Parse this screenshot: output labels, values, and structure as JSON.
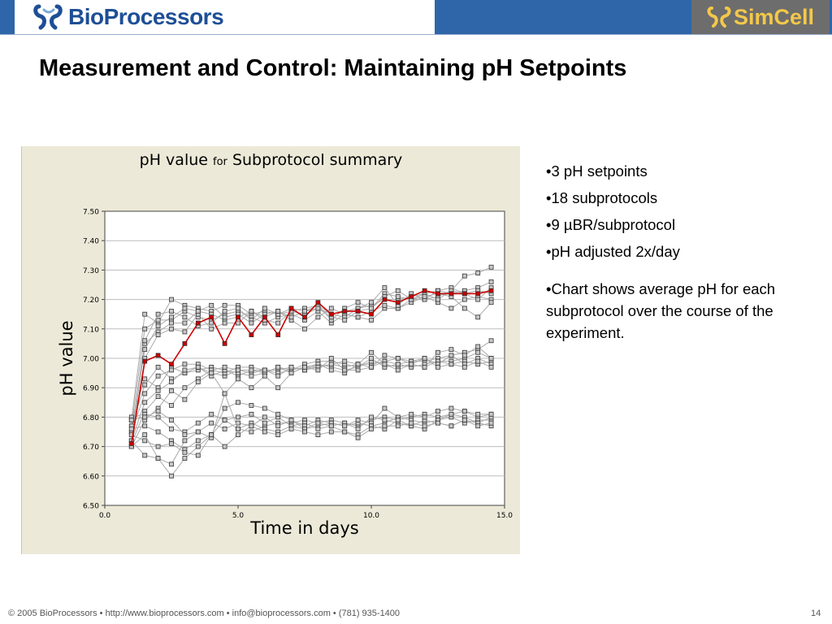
{
  "header": {
    "left_logo_text": "BioProcessors",
    "right_logo_text": "SimCell",
    "brand_color": "#2e66a9"
  },
  "slide": {
    "title": "Measurement and Control:  Maintaining pH Setpoints"
  },
  "bullets": {
    "items": [
      "•3 pH setpoints",
      "•18 subprotocols",
      "•9 µBR/subprotocol",
      "•pH adjusted 2x/day"
    ],
    "note": "•Chart shows average pH for each subprotocol over the course of the experiment."
  },
  "footer": {
    "text": "© 2005 BioProcessors • http://www.bioprocessors.com • info@bioprocessors.com • (781) 935-1400",
    "page_number": "14"
  },
  "chart_data": {
    "type": "line",
    "title_main": "pH value",
    "title_for": "for",
    "title_rest": "Subprotocol summary",
    "xlabel": "Time in days",
    "ylabel": "pH value",
    "xlim": [
      0,
      15
    ],
    "ylim": [
      6.5,
      7.5
    ],
    "x_ticks": [
      "0.0",
      "5.0",
      "10.0",
      "15.0"
    ],
    "x_tick_values": [
      0,
      5,
      10,
      15
    ],
    "y_ticks": [
      "6.50",
      "6.60",
      "6.70",
      "6.80",
      "6.90",
      "7.00",
      "7.10",
      "7.20",
      "7.30",
      "7.40",
      "7.50"
    ],
    "y_tick_values": [
      6.5,
      6.6,
      6.7,
      6.8,
      6.9,
      7.0,
      7.1,
      7.2,
      7.3,
      7.4,
      7.5
    ],
    "highlight_color": "#cc0000",
    "series_color": "#aaaaaa",
    "x": [
      1.0,
      1.5,
      2.0,
      2.5,
      3.0,
      3.5,
      4.0,
      4.5,
      5.0,
      5.5,
      6.0,
      6.5,
      7.0,
      7.5,
      8.0,
      8.5,
      9.0,
      9.5,
      10.0,
      10.5,
      11.0,
      11.5,
      12.0,
      12.5,
      13.0,
      13.5,
      14.0,
      14.5
    ],
    "highlight": {
      "name": "average",
      "values": [
        6.71,
        6.99,
        7.01,
        6.98,
        7.05,
        7.12,
        7.14,
        7.05,
        7.14,
        7.08,
        7.14,
        7.08,
        7.17,
        7.14,
        7.19,
        7.15,
        7.16,
        7.16,
        7.15,
        7.2,
        7.19,
        7.21,
        7.23,
        7.22,
        7.22,
        7.22,
        7.22,
        7.23
      ]
    },
    "series": [
      {
        "values": [
          6.79,
          7.15,
          7.12,
          7.2,
          7.18,
          7.17,
          7.16,
          7.18,
          7.18,
          7.15,
          7.16,
          7.15,
          7.16,
          7.15,
          7.17,
          7.15,
          7.16,
          7.17,
          7.18,
          7.2,
          7.2,
          7.21,
          7.22,
          7.23,
          7.22,
          7.23,
          7.24,
          7.26
        ]
      },
      {
        "values": [
          6.77,
          7.1,
          7.13,
          7.13,
          7.16,
          7.14,
          7.13,
          7.15,
          7.16,
          7.14,
          7.12,
          7.14,
          7.15,
          7.13,
          7.16,
          7.12,
          7.15,
          7.14,
          7.13,
          7.17,
          7.17,
          7.2,
          7.2,
          7.21,
          7.23,
          7.22,
          7.23,
          7.22
        ]
      },
      {
        "values": [
          6.72,
          7.05,
          7.09,
          7.12,
          7.12,
          7.16,
          7.15,
          7.13,
          7.14,
          7.16,
          7.14,
          7.16,
          7.13,
          7.1,
          7.14,
          7.17,
          7.15,
          7.14,
          7.16,
          7.18,
          7.17,
          7.19,
          7.21,
          7.19,
          7.17,
          7.2,
          7.21,
          7.2
        ]
      },
      {
        "values": [
          6.74,
          7.06,
          7.15,
          7.16,
          7.14,
          7.11,
          7.12,
          7.16,
          7.17,
          7.13,
          7.17,
          7.15,
          7.17,
          7.16,
          7.18,
          7.15,
          7.14,
          7.17,
          7.19,
          7.24,
          7.18,
          7.22,
          7.2,
          7.23,
          7.24,
          7.22,
          7.2,
          7.24
        ]
      },
      {
        "values": [
          6.7,
          7.0,
          7.08,
          7.1,
          7.09,
          7.15,
          7.1,
          7.12,
          7.12,
          7.16,
          7.13,
          7.12,
          7.16,
          7.17,
          7.18,
          7.13,
          7.17,
          7.19,
          7.17,
          7.22,
          7.21,
          7.2,
          7.22,
          7.2,
          7.23,
          7.28,
          7.29,
          7.31
        ]
      },
      {
        "values": [
          6.75,
          7.03,
          7.11,
          7.14,
          7.17,
          7.16,
          7.18,
          7.14,
          7.15,
          7.12,
          7.15,
          7.16,
          7.14,
          7.16,
          7.17,
          7.14,
          7.13,
          7.16,
          7.17,
          7.21,
          7.23,
          7.2,
          7.21,
          7.22,
          7.21,
          7.17,
          7.14,
          7.19
        ]
      },
      {
        "values": [
          6.79,
          6.93,
          6.9,
          6.97,
          6.95,
          6.96,
          6.97,
          6.96,
          6.94,
          6.96,
          6.95,
          6.97,
          6.96,
          6.97,
          6.97,
          6.98,
          6.97,
          6.98,
          6.98,
          6.99,
          6.98,
          6.99,
          6.99,
          7.0,
          7.01,
          7.02,
          7.03,
          7.06
        ]
      },
      {
        "values": [
          6.77,
          6.91,
          6.97,
          6.93,
          6.95,
          6.97,
          6.95,
          6.94,
          6.96,
          6.95,
          6.96,
          6.96,
          6.97,
          6.96,
          6.98,
          6.97,
          6.96,
          6.97,
          6.99,
          6.98,
          6.97,
          6.98,
          6.97,
          6.99,
          6.99,
          7.0,
          7.02,
          7.0
        ]
      },
      {
        "values": [
          6.75,
          6.88,
          6.94,
          6.96,
          6.98,
          6.98,
          6.96,
          6.95,
          6.97,
          6.97,
          6.96,
          6.95,
          6.96,
          6.98,
          6.99,
          6.99,
          6.98,
          6.97,
          7.0,
          6.97,
          6.98,
          6.97,
          6.98,
          6.99,
          6.98,
          6.99,
          6.98,
          6.99
        ]
      },
      {
        "values": [
          6.72,
          6.85,
          6.89,
          6.92,
          6.96,
          6.97,
          6.94,
          6.96,
          6.95,
          6.94,
          6.95,
          6.97,
          6.95,
          6.97,
          6.98,
          6.96,
          6.95,
          6.98,
          6.97,
          6.99,
          7.0,
          6.99,
          7.0,
          6.98,
          7.01,
          6.98,
          7.0,
          6.98
        ]
      },
      {
        "values": [
          6.71,
          6.82,
          6.87,
          6.84,
          6.9,
          6.93,
          6.96,
          6.97,
          6.96,
          6.96,
          6.96,
          6.94,
          6.97,
          6.96,
          6.97,
          6.98,
          6.99,
          6.98,
          7.02,
          6.98,
          6.96,
          6.98,
          7.0,
          6.97,
          6.98,
          6.97,
          6.99,
          6.97
        ]
      },
      {
        "values": [
          6.7,
          6.79,
          6.83,
          6.89,
          6.86,
          6.92,
          6.95,
          6.88,
          6.93,
          6.9,
          6.94,
          6.9,
          6.95,
          6.97,
          6.96,
          7.0,
          6.96,
          6.96,
          6.97,
          7.01,
          7.0,
          6.98,
          6.97,
          7.02,
          7.03,
          7.01,
          7.04,
          7.0
        ]
      },
      {
        "values": [
          6.8,
          6.81,
          6.8,
          6.76,
          6.75,
          6.78,
          6.81,
          6.79,
          6.76,
          6.75,
          6.77,
          6.78,
          6.78,
          6.79,
          6.78,
          6.79,
          6.78,
          6.77,
          6.79,
          6.8,
          6.79,
          6.8,
          6.81,
          6.8,
          6.81,
          6.82,
          6.8,
          6.81
        ]
      },
      {
        "values": [
          6.79,
          6.8,
          6.82,
          6.79,
          6.74,
          6.75,
          6.78,
          6.76,
          6.78,
          6.77,
          6.8,
          6.77,
          6.79,
          6.76,
          6.77,
          6.78,
          6.77,
          6.78,
          6.77,
          6.78,
          6.8,
          6.79,
          6.78,
          6.79,
          6.8,
          6.78,
          6.79,
          6.79
        ]
      },
      {
        "values": [
          6.76,
          6.77,
          6.75,
          6.72,
          6.69,
          6.72,
          6.74,
          6.79,
          6.8,
          6.81,
          6.78,
          6.8,
          6.77,
          6.78,
          6.76,
          6.77,
          6.78,
          6.76,
          6.8,
          6.79,
          6.78,
          6.77,
          6.79,
          6.78,
          6.77,
          6.79,
          6.78,
          6.8
        ]
      },
      {
        "values": [
          6.74,
          6.72,
          6.7,
          6.71,
          6.68,
          6.67,
          6.74,
          6.83,
          6.85,
          6.84,
          6.83,
          6.81,
          6.79,
          6.77,
          6.79,
          6.78,
          6.77,
          6.79,
          6.78,
          6.83,
          6.8,
          6.81,
          6.8,
          6.82,
          6.83,
          6.82,
          6.81,
          6.81
        ]
      },
      {
        "values": [
          6.72,
          6.67,
          6.66,
          6.64,
          6.72,
          6.75,
          6.73,
          6.88,
          6.76,
          6.78,
          6.76,
          6.75,
          6.77,
          6.76,
          6.78,
          6.77,
          6.75,
          6.74,
          6.77,
          6.76,
          6.79,
          6.77,
          6.76,
          6.79,
          6.81,
          6.8,
          6.78,
          6.77
        ]
      },
      {
        "values": [
          6.7,
          6.74,
          6.66,
          6.6,
          6.66,
          6.7,
          6.74,
          6.7,
          6.74,
          6.77,
          6.75,
          6.74,
          6.76,
          6.75,
          6.74,
          6.75,
          6.75,
          6.73,
          6.76,
          6.77,
          6.77,
          6.78,
          6.77,
          6.78,
          6.77,
          6.79,
          6.77,
          6.78
        ]
      }
    ]
  }
}
